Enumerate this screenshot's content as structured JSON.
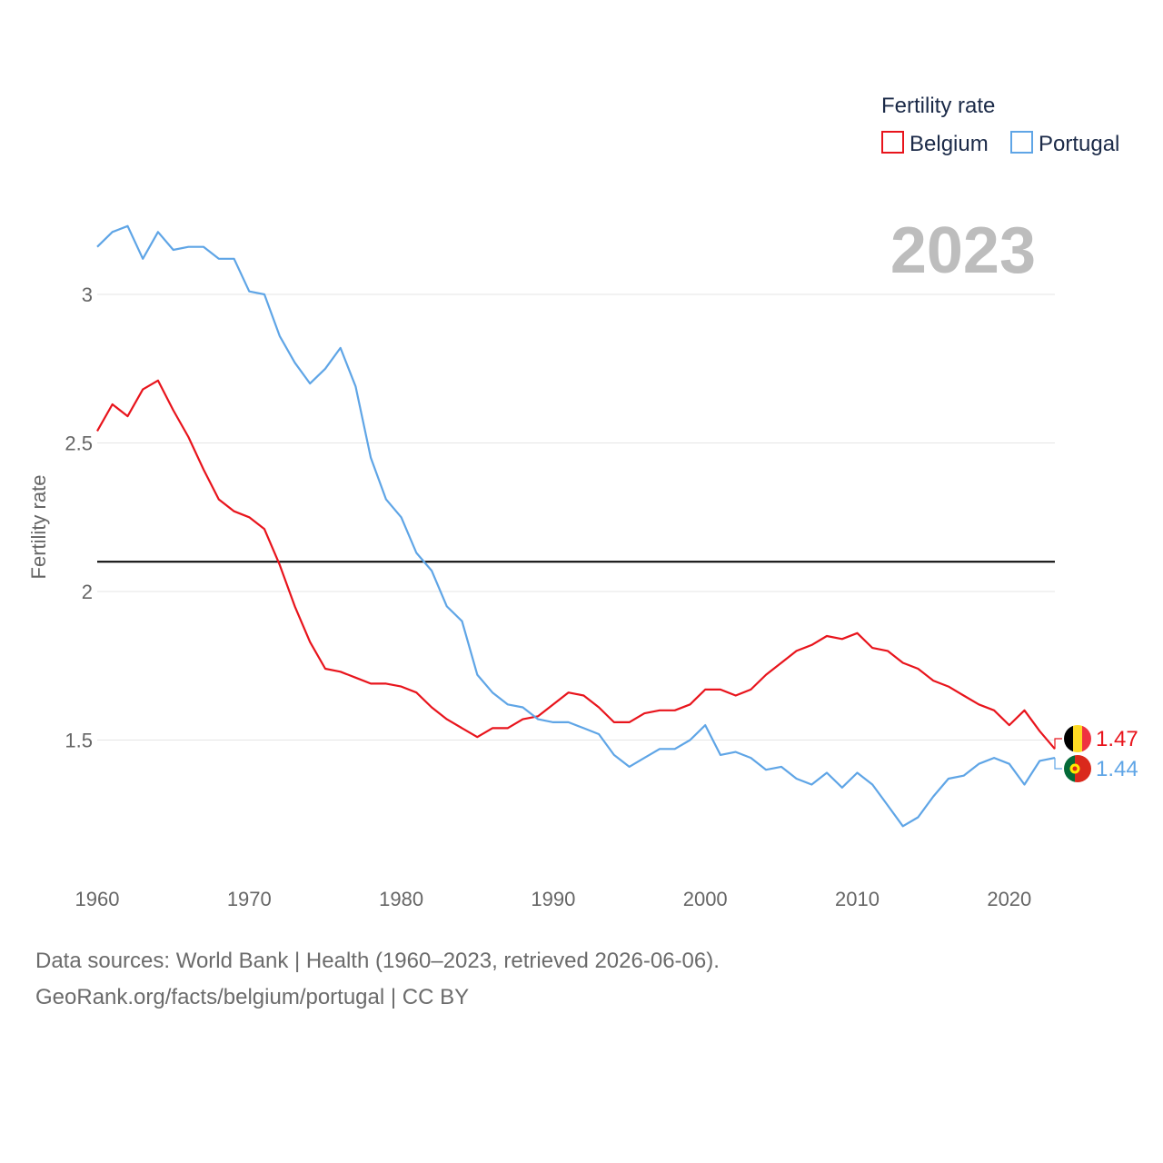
{
  "chart_data": {
    "type": "line",
    "title": "",
    "year_display": "2023",
    "ylabel": "Fertility rate",
    "xlabel": "",
    "xlim": [
      1960,
      2023
    ],
    "ylim": [
      1.05,
      3.3
    ],
    "y_ticks": [
      1.5,
      2,
      2.5,
      3
    ],
    "y_tick_labels": [
      "1.5",
      "2",
      "2.5",
      "3"
    ],
    "x_ticks": [
      1960,
      1970,
      1980,
      1990,
      2000,
      2010,
      2020
    ],
    "x_tick_labels": [
      "1960",
      "1970",
      "1980",
      "1990",
      "2000",
      "2010",
      "2020"
    ],
    "reference_line": 2.1,
    "legend": {
      "title": "Fertility rate",
      "entries": [
        "Belgium",
        "Portugal"
      ],
      "position": "top-right"
    },
    "x": [
      1960,
      1961,
      1962,
      1963,
      1964,
      1965,
      1966,
      1967,
      1968,
      1969,
      1970,
      1971,
      1972,
      1973,
      1974,
      1975,
      1976,
      1977,
      1978,
      1979,
      1980,
      1981,
      1982,
      1983,
      1984,
      1985,
      1986,
      1987,
      1988,
      1989,
      1990,
      1991,
      1992,
      1993,
      1994,
      1995,
      1996,
      1997,
      1998,
      1999,
      2000,
      2001,
      2002,
      2003,
      2004,
      2005,
      2006,
      2007,
      2008,
      2009,
      2010,
      2011,
      2012,
      2013,
      2014,
      2015,
      2016,
      2017,
      2018,
      2019,
      2020,
      2021,
      2022,
      2023
    ],
    "series": [
      {
        "name": "Belgium",
        "color": "#e8141c",
        "end_label": "1.47",
        "values": [
          2.54,
          2.63,
          2.59,
          2.68,
          2.71,
          2.61,
          2.52,
          2.41,
          2.31,
          2.27,
          2.25,
          2.21,
          2.09,
          1.95,
          1.83,
          1.74,
          1.73,
          1.71,
          1.69,
          1.69,
          1.68,
          1.66,
          1.61,
          1.57,
          1.54,
          1.51,
          1.54,
          1.54,
          1.57,
          1.58,
          1.62,
          1.66,
          1.65,
          1.61,
          1.56,
          1.56,
          1.59,
          1.6,
          1.6,
          1.62,
          1.67,
          1.67,
          1.65,
          1.67,
          1.72,
          1.76,
          1.8,
          1.82,
          1.85,
          1.84,
          1.86,
          1.81,
          1.8,
          1.76,
          1.74,
          1.7,
          1.68,
          1.65,
          1.62,
          1.6,
          1.55,
          1.6,
          1.53,
          1.47
        ]
      },
      {
        "name": "Portugal",
        "color": "#5fa5e6",
        "end_label": "1.44",
        "values": [
          3.16,
          3.21,
          3.23,
          3.12,
          3.21,
          3.15,
          3.16,
          3.16,
          3.12,
          3.12,
          3.01,
          3.0,
          2.86,
          2.77,
          2.7,
          2.75,
          2.82,
          2.69,
          2.45,
          2.31,
          2.25,
          2.13,
          2.07,
          1.95,
          1.9,
          1.72,
          1.66,
          1.62,
          1.61,
          1.57,
          1.56,
          1.56,
          1.54,
          1.52,
          1.45,
          1.41,
          1.44,
          1.47,
          1.47,
          1.5,
          1.55,
          1.45,
          1.46,
          1.44,
          1.4,
          1.41,
          1.37,
          1.35,
          1.39,
          1.34,
          1.39,
          1.35,
          1.28,
          1.21,
          1.24,
          1.31,
          1.37,
          1.38,
          1.42,
          1.44,
          1.42,
          1.35,
          1.43,
          1.44
        ]
      }
    ]
  },
  "footer": {
    "line1": "Data sources: World Bank | Health (1960–2023, retrieved 2026-06-06).",
    "line2": "GeoRank.org/facts/belgium/portugal | CC BY"
  }
}
